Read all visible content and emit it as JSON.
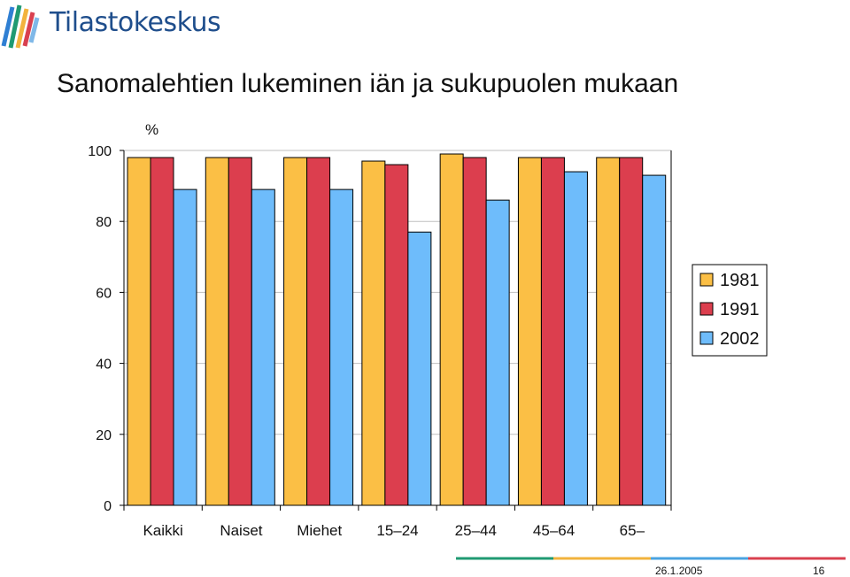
{
  "branding": {
    "logo_text": "Tilastokeskus",
    "colors": {
      "logo_blue": "#1f4e8c",
      "line_green": "#1f9a72",
      "line_yellow": "#f2b33d",
      "line_blue": "#4aa3e0",
      "line_red": "#d9404f"
    }
  },
  "page": {
    "title": "Sanomalehtien lukeminen iän ja sukupuolen mukaan"
  },
  "footer": {
    "date": "26.1.2005",
    "page": "16"
  },
  "chart_data": {
    "type": "bar",
    "title": "Sanomalehtien lukeminen iän ja sukupuolen mukaan",
    "ylabel": "%",
    "xlabel": "",
    "ylim": [
      0,
      100
    ],
    "yticks": [
      "0",
      "20",
      "40",
      "60",
      "80",
      "100"
    ],
    "grid": true,
    "legend_position": "right",
    "categories": [
      "Kaikki",
      "Naiset",
      "Miehet",
      "15–24",
      "25–44",
      "45–64",
      "65–"
    ],
    "series": [
      {
        "name": "1981",
        "color": "#fbbf45",
        "values": [
          98,
          98,
          98,
          97,
          99,
          98,
          98
        ]
      },
      {
        "name": "1991",
        "color": "#dc3e4e",
        "values": [
          98,
          98,
          98,
          96,
          98,
          98,
          98
        ]
      },
      {
        "name": "2002",
        "color": "#6ebcfb",
        "values": [
          89,
          89,
          89,
          77,
          86,
          94,
          93
        ]
      }
    ]
  }
}
